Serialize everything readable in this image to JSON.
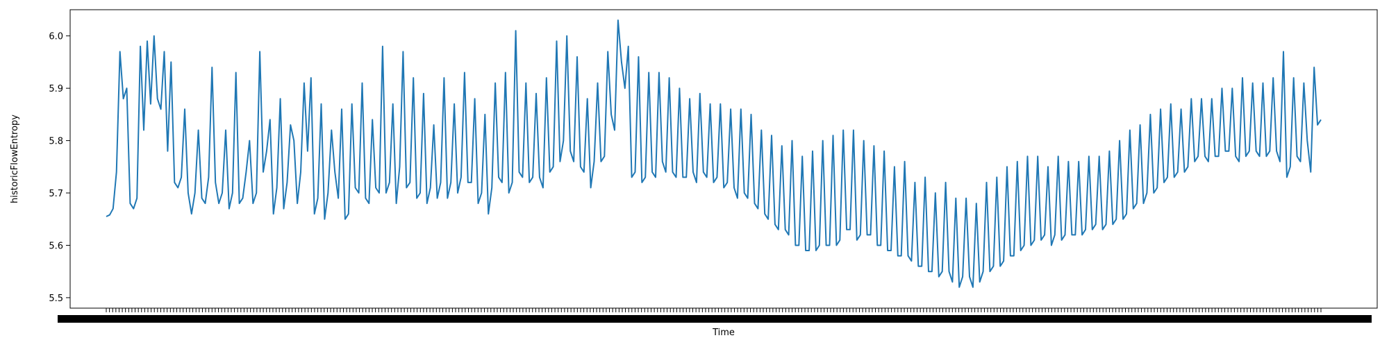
{
  "chart_data": {
    "type": "line",
    "xlabel": "Time",
    "ylabel": "historicFlowEntropy",
    "ylim": [
      5.48,
      6.05
    ],
    "yticks": [
      5.5,
      5.6,
      5.7,
      5.8,
      5.9,
      6.0
    ],
    "ytick_labels": [
      "5.5",
      "5.6",
      "5.7",
      "5.8",
      "5.9",
      "6.0"
    ],
    "x_tick_labels_overlapping": true,
    "grid": false,
    "line_color": "#1f77b4",
    "series": [
      {
        "values": [
          5.655,
          5.658,
          5.67,
          5.74,
          5.97,
          5.88,
          5.9,
          5.68,
          5.67,
          5.69,
          5.98,
          5.82,
          5.99,
          5.87,
          6.0,
          5.88,
          5.86,
          5.97,
          5.78,
          5.95,
          5.72,
          5.71,
          5.73,
          5.86,
          5.7,
          5.66,
          5.7,
          5.82,
          5.69,
          5.68,
          5.73,
          5.94,
          5.72,
          5.68,
          5.7,
          5.82,
          5.67,
          5.7,
          5.93,
          5.68,
          5.69,
          5.74,
          5.8,
          5.68,
          5.7,
          5.97,
          5.74,
          5.78,
          5.84,
          5.66,
          5.71,
          5.88,
          5.67,
          5.72,
          5.83,
          5.8,
          5.68,
          5.74,
          5.91,
          5.78,
          5.92,
          5.66,
          5.69,
          5.87,
          5.65,
          5.7,
          5.82,
          5.74,
          5.69,
          5.86,
          5.65,
          5.66,
          5.87,
          5.71,
          5.7,
          5.91,
          5.69,
          5.68,
          5.84,
          5.71,
          5.7,
          5.98,
          5.7,
          5.72,
          5.87,
          5.68,
          5.75,
          5.97,
          5.71,
          5.72,
          5.92,
          5.69,
          5.7,
          5.89,
          5.68,
          5.71,
          5.83,
          5.69,
          5.72,
          5.92,
          5.69,
          5.72,
          5.87,
          5.7,
          5.73,
          5.93,
          5.72,
          5.72,
          5.88,
          5.68,
          5.7,
          5.85,
          5.66,
          5.71,
          5.91,
          5.73,
          5.72,
          5.93,
          5.7,
          5.72,
          6.01,
          5.74,
          5.73,
          5.91,
          5.72,
          5.73,
          5.89,
          5.73,
          5.71,
          5.92,
          5.74,
          5.75,
          5.99,
          5.76,
          5.8,
          6.0,
          5.78,
          5.76,
          5.96,
          5.75,
          5.74,
          5.88,
          5.71,
          5.76,
          5.91,
          5.76,
          5.77,
          5.97,
          5.85,
          5.82,
          6.03,
          5.95,
          5.9,
          5.98,
          5.73,
          5.74,
          5.96,
          5.72,
          5.73,
          5.93,
          5.74,
          5.73,
          5.93,
          5.76,
          5.74,
          5.92,
          5.74,
          5.73,
          5.9,
          5.73,
          5.73,
          5.88,
          5.74,
          5.72,
          5.89,
          5.74,
          5.73,
          5.87,
          5.72,
          5.73,
          5.87,
          5.71,
          5.72,
          5.86,
          5.71,
          5.69,
          5.86,
          5.7,
          5.69,
          5.85,
          5.68,
          5.67,
          5.82,
          5.66,
          5.65,
          5.81,
          5.64,
          5.63,
          5.79,
          5.63,
          5.62,
          5.8,
          5.6,
          5.6,
          5.77,
          5.59,
          5.59,
          5.78,
          5.59,
          5.6,
          5.8,
          5.6,
          5.6,
          5.81,
          5.6,
          5.61,
          5.82,
          5.63,
          5.63,
          5.82,
          5.61,
          5.62,
          5.8,
          5.62,
          5.62,
          5.79,
          5.6,
          5.6,
          5.78,
          5.59,
          5.59,
          5.75,
          5.58,
          5.58,
          5.76,
          5.58,
          5.57,
          5.72,
          5.56,
          5.56,
          5.73,
          5.55,
          5.55,
          5.7,
          5.54,
          5.55,
          5.72,
          5.55,
          5.53,
          5.69,
          5.52,
          5.54,
          5.69,
          5.54,
          5.52,
          5.68,
          5.53,
          5.55,
          5.72,
          5.55,
          5.56,
          5.73,
          5.56,
          5.57,
          5.75,
          5.58,
          5.58,
          5.76,
          5.59,
          5.6,
          5.77,
          5.6,
          5.61,
          5.77,
          5.61,
          5.62,
          5.75,
          5.6,
          5.62,
          5.77,
          5.61,
          5.62,
          5.76,
          5.62,
          5.62,
          5.76,
          5.62,
          5.63,
          5.77,
          5.63,
          5.64,
          5.77,
          5.63,
          5.64,
          5.78,
          5.64,
          5.65,
          5.8,
          5.65,
          5.66,
          5.82,
          5.67,
          5.68,
          5.83,
          5.68,
          5.7,
          5.85,
          5.7,
          5.71,
          5.86,
          5.72,
          5.73,
          5.87,
          5.73,
          5.74,
          5.86,
          5.74,
          5.75,
          5.88,
          5.76,
          5.77,
          5.88,
          5.77,
          5.76,
          5.88,
          5.77,
          5.77,
          5.9,
          5.78,
          5.78,
          5.9,
          5.77,
          5.76,
          5.92,
          5.77,
          5.78,
          5.91,
          5.78,
          5.77,
          5.91,
          5.77,
          5.78,
          5.92,
          5.78,
          5.76,
          5.97,
          5.73,
          5.75,
          5.92,
          5.77,
          5.76,
          5.91,
          5.8,
          5.74,
          5.94,
          5.83,
          5.84
        ]
      }
    ]
  }
}
